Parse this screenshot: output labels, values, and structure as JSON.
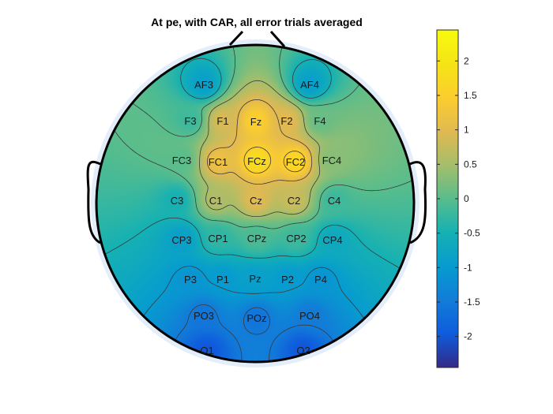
{
  "chart_data": {
    "type": "heatmap",
    "subtype": "eeg-topoplot",
    "title": "At pe, with CAR, all error trials averaged",
    "colormap": "parula",
    "clim": [
      -2.45,
      2.45
    ],
    "colorbar": {
      "ticks": [
        2,
        1.5,
        1,
        0.5,
        0,
        -0.5,
        -1,
        -1.5,
        -2
      ],
      "tick_labels": [
        "2",
        "1.5",
        "1",
        "0.5",
        "0",
        "-0.5",
        "-1",
        "-1.5",
        "-2"
      ]
    },
    "contours": "on",
    "electrodes": [
      {
        "name": "AF3",
        "value": -0.9
      },
      {
        "name": "AF4",
        "value": -0.9
      },
      {
        "name": "F3",
        "value": -0.2
      },
      {
        "name": "F1",
        "value": 0.9
      },
      {
        "name": "Fz",
        "value": 1.5
      },
      {
        "name": "F2",
        "value": 1.0
      },
      {
        "name": "F4",
        "value": 0.1
      },
      {
        "name": "FC3",
        "value": 0.0
      },
      {
        "name": "FC1",
        "value": 1.2
      },
      {
        "name": "FCz",
        "value": 1.8
      },
      {
        "name": "FC2",
        "value": 1.7
      },
      {
        "name": "FC4",
        "value": 0.3
      },
      {
        "name": "C3",
        "value": -0.5
      },
      {
        "name": "C1",
        "value": 0.6
      },
      {
        "name": "Cz",
        "value": 1.0
      },
      {
        "name": "C2",
        "value": 0.8
      },
      {
        "name": "C4",
        "value": -0.2
      },
      {
        "name": "CP3",
        "value": -0.9
      },
      {
        "name": "CP1",
        "value": -0.3
      },
      {
        "name": "CPz",
        "value": -0.1
      },
      {
        "name": "CP2",
        "value": -0.2
      },
      {
        "name": "CP4",
        "value": -0.7
      },
      {
        "name": "P3",
        "value": -1.1
      },
      {
        "name": "P1",
        "value": -1.0
      },
      {
        "name": "Pz",
        "value": -0.9
      },
      {
        "name": "P2",
        "value": -1.0
      },
      {
        "name": "P4",
        "value": -1.1
      },
      {
        "name": "PO3",
        "value": -1.6
      },
      {
        "name": "POz",
        "value": -1.6
      },
      {
        "name": "PO4",
        "value": -1.5
      },
      {
        "name": "O1",
        "value": -2.0
      },
      {
        "name": "O2",
        "value": -2.0
      }
    ]
  }
}
